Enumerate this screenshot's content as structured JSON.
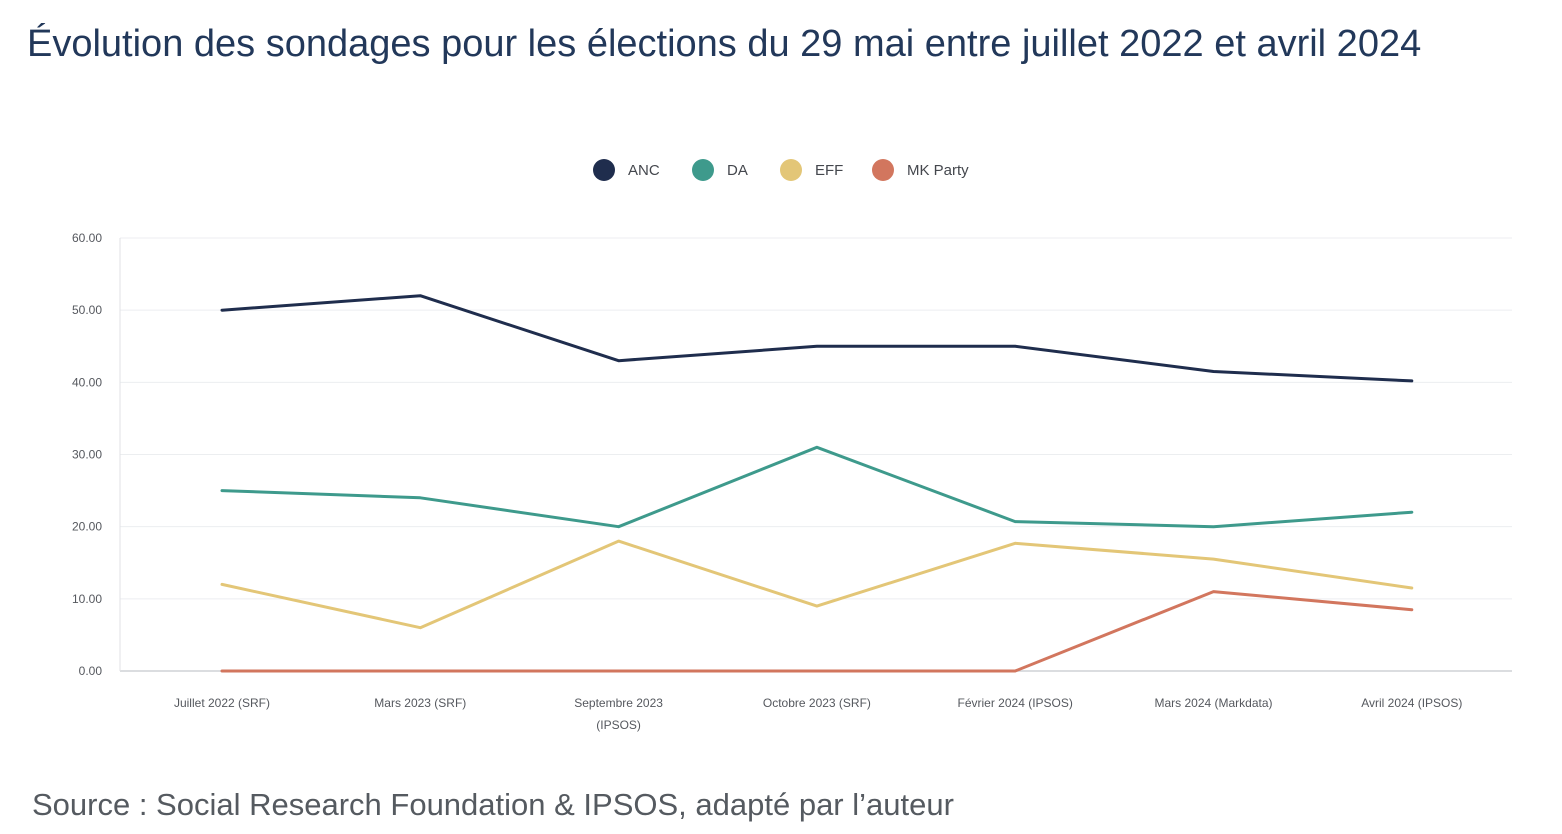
{
  "title": "Évolution des sondages pour les élections du 29 mai entre juillet 2022 et avril 2024",
  "source": "Source : Social Research Foundation & IPSOS, adapté par l’auteur",
  "chart_data": {
    "type": "line",
    "title": "Évolution des sondages pour les élections du 29 mai entre juillet 2022 et avril 2024",
    "xlabel": "",
    "ylabel": "",
    "ylim": [
      0,
      60
    ],
    "yticks": [
      "0.00",
      "10.00",
      "20.00",
      "30.00",
      "40.00",
      "50.00",
      "60.00"
    ],
    "grid": true,
    "legend_position": "top-center",
    "categories": [
      [
        "Juillet 2022 (SRF)"
      ],
      [
        "Mars 2023 (SRF)"
      ],
      [
        "Septembre 2023",
        "(IPSOS)"
      ],
      [
        "Octobre 2023 (SRF)"
      ],
      [
        "Février 2024 (IPSOS)"
      ],
      [
        "Mars 2024 (Markdata)"
      ],
      [
        "Avril 2024 (IPSOS)"
      ]
    ],
    "series": [
      {
        "name": "ANC",
        "color": "#1f2d4d",
        "values": [
          50.0,
          52.0,
          43.0,
          45.0,
          45.0,
          41.5,
          40.2
        ]
      },
      {
        "name": "DA",
        "color": "#3e9a8c",
        "values": [
          25.0,
          24.0,
          20.0,
          31.0,
          20.7,
          20.0,
          22.0
        ]
      },
      {
        "name": "EFF",
        "color": "#e3c677",
        "values": [
          12.0,
          6.0,
          18.0,
          9.0,
          17.7,
          15.5,
          11.5
        ]
      },
      {
        "name": "MK Party",
        "color": "#d2765e",
        "values": [
          0.0,
          0.0,
          0.0,
          0.0,
          0.0,
          11.0,
          8.5
        ]
      }
    ]
  }
}
